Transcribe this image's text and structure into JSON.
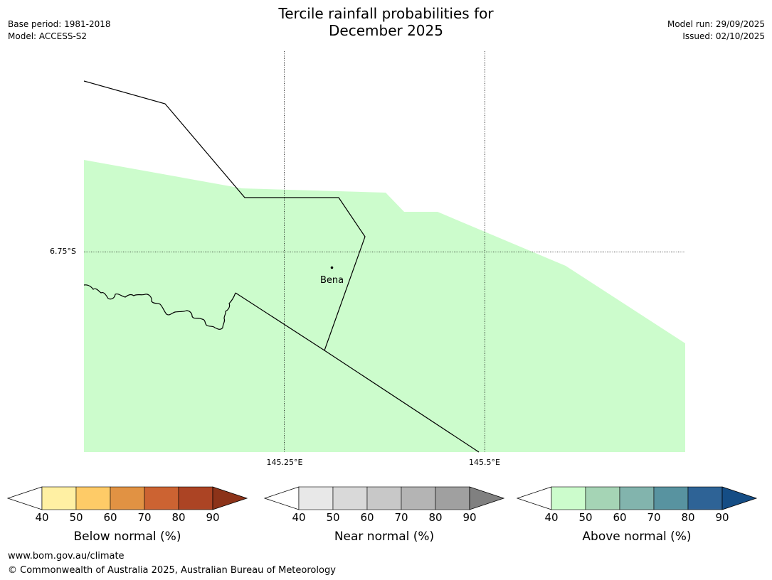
{
  "header": {
    "title_line1": "Tercile rainfall probabilities for",
    "title_line2": "December 2025",
    "base_period": "Base period: 1981-2018",
    "model": "Model: ACCESS-S2",
    "model_run": "Model run: 29/09/2025",
    "issued": "Issued: 02/10/2025"
  },
  "map": {
    "longitude_labels": [
      "145.25°E",
      "145.5°E"
    ],
    "latitude_labels": [
      "6.75°S"
    ],
    "places": [
      {
        "name": "Bena"
      }
    ],
    "colors": {
      "above_normal_40_50": "#ccfccc",
      "boundary": "#000000"
    }
  },
  "colorbars": [
    {
      "label": "Below normal (%)",
      "ticks": [
        "40",
        "50",
        "60",
        "70",
        "80",
        "90"
      ],
      "colors": [
        "#fff0a3",
        "#fecb67",
        "#e19243",
        "#cc6332",
        "#ac4424",
        "#8c3319"
      ]
    },
    {
      "label": "Near normal (%)",
      "ticks": [
        "40",
        "50",
        "60",
        "70",
        "80",
        "90"
      ],
      "colors": [
        "#e8e8e8",
        "#d9d9d9",
        "#c8c8c8",
        "#b4b4b4",
        "#a0a0a0",
        "#808080"
      ]
    },
    {
      "label": "Above normal (%)",
      "ticks": [
        "40",
        "50",
        "60",
        "70",
        "80",
        "90"
      ],
      "colors": [
        "#ccfccc",
        "#a5d4b5",
        "#82b4ad",
        "#5893a0",
        "#2e6396",
        "#154d85"
      ]
    }
  ],
  "footer": {
    "url": "www.bom.gov.au/climate",
    "copyright": "© Commonwealth of Australia 2025, Australian Bureau of Meteorology"
  }
}
